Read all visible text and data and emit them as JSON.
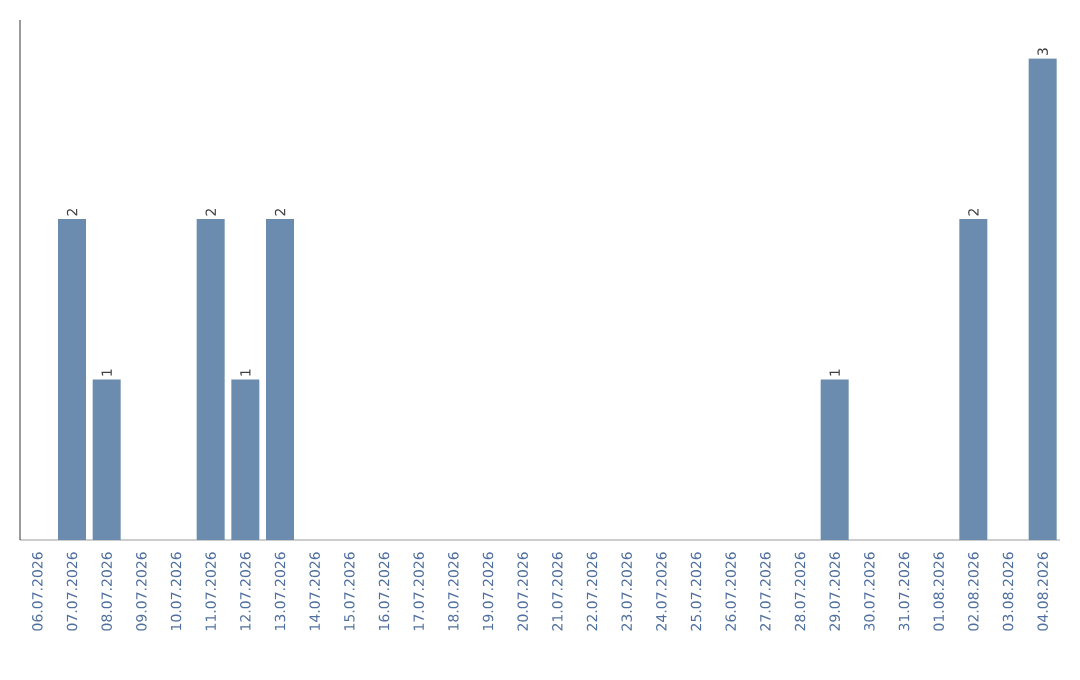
{
  "chart_data": {
    "type": "bar",
    "relative": false,
    "categories": [
      "06.07.2026",
      "07.07.2026",
      "08.07.2026",
      "09.07.2026",
      "10.07.2026",
      "11.07.2026",
      "12.07.2026",
      "13.07.2026",
      "14.07.2026",
      "15.07.2026",
      "16.07.2026",
      "17.07.2026",
      "18.07.2026",
      "19.07.2026",
      "20.07.2026",
      "21.07.2026",
      "22.07.2026",
      "23.07.2026",
      "24.07.2026",
      "25.07.2026",
      "26.07.2026",
      "27.07.2026",
      "28.07.2026",
      "29.07.2026",
      "30.07.2026",
      "31.07.2026",
      "01.08.2026",
      "02.08.2026",
      "03.08.2026",
      "04.08.2026"
    ],
    "values": [
      0,
      2,
      1,
      0,
      0,
      2,
      1,
      2,
      0,
      0,
      0,
      0,
      0,
      0,
      0,
      0,
      0,
      0,
      0,
      0,
      0,
      0,
      0,
      1,
      0,
      0,
      0,
      2,
      0,
      3
    ],
    "value_labels": [
      null,
      "2",
      "1",
      null,
      null,
      "2",
      "1",
      "2",
      null,
      null,
      null,
      null,
      null,
      null,
      null,
      null,
      null,
      null,
      null,
      null,
      null,
      null,
      null,
      "1",
      null,
      null,
      null,
      "2",
      null,
      "3"
    ],
    "color": "#6b8cae",
    "tick_labels": "x"
  }
}
